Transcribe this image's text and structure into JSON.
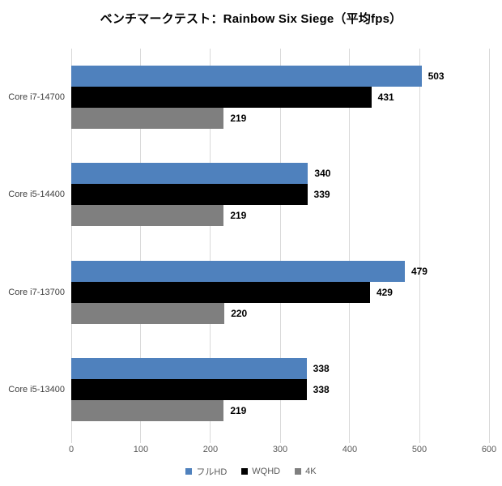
{
  "title": "ベンチマークテスト：Rainbow Six Siege（平均fps）",
  "colors": {
    "series_fullhd": "#4f81bd",
    "series_wqhd": "#000000",
    "series_4k": "#7f7f7f",
    "gridline": "#d9d9d9",
    "axis_text": "#595959",
    "category_text": "#404040",
    "value_text": "#000000",
    "background": "#ffffff"
  },
  "chart_data": {
    "type": "bar",
    "orientation": "horizontal",
    "title": "ベンチマークテスト：Rainbow Six Siege（平均fps）",
    "categories": [
      "Core i7-14700",
      "Core i5-14400",
      "Core i7-13700",
      "Core i5-13400"
    ],
    "series": [
      {
        "key": "fullhd",
        "name": "フルHD",
        "color": "#4f81bd",
        "values": [
          503,
          340,
          479,
          338
        ]
      },
      {
        "key": "wqhd",
        "name": "WQHD",
        "color": "#000000",
        "values": [
          431,
          339,
          429,
          338
        ]
      },
      {
        "key": "4k",
        "name": "4K",
        "color": "#7f7f7f",
        "values": [
          219,
          219,
          220,
          219
        ]
      }
    ],
    "xlabel": "",
    "ylabel": "",
    "xlim": [
      0,
      600
    ],
    "xticks": [
      0,
      100,
      200,
      300,
      400,
      500,
      600
    ],
    "grid": true,
    "data_labels": true,
    "legend_position": "bottom"
  }
}
